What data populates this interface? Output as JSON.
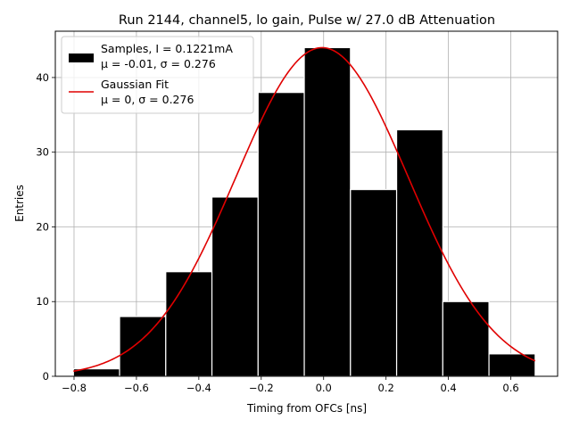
{
  "chart_data": {
    "type": "bar",
    "title": "Run 2144, channel5, lo gain, Pulse w/ 27.0 dB Attenuation",
    "xlabel": "Timing from OFCs [ns]",
    "ylabel": "Entries",
    "xlim": [
      -0.86,
      0.75
    ],
    "ylim": [
      0,
      46.2
    ],
    "grid": true,
    "legend_position": "upper-left",
    "x_ticks": [
      -0.8,
      -0.6,
      -0.4,
      -0.2,
      0.0,
      0.2,
      0.4,
      0.6
    ],
    "x_tick_labels": [
      "−0.8",
      "−0.6",
      "−0.4",
      "−0.2",
      "0.0",
      "0.2",
      "0.4",
      "0.6"
    ],
    "y_ticks": [
      0,
      10,
      20,
      30,
      40
    ],
    "y_tick_labels": [
      "0",
      "10",
      "20",
      "30",
      "40"
    ],
    "histogram": {
      "name": "Samples, I = 0.1221mA",
      "name_line2": "μ = -0.01, σ = 0.276",
      "color": "#000000",
      "bin_edges": [
        -0.802,
        -0.654,
        -0.506,
        -0.358,
        -0.21,
        -0.062,
        0.086,
        0.234,
        0.382,
        0.53,
        0.678
      ],
      "counts": [
        1,
        8,
        14,
        24,
        38,
        44,
        25,
        33,
        10,
        3
      ]
    },
    "fit": {
      "name": "Gaussian Fit",
      "name_line2": "μ = 0, σ = 0.276",
      "color": "#e00000",
      "type": "gaussian",
      "amplitude": 44,
      "mean": -0.005,
      "sigma": 0.276,
      "x_range": [
        -0.802,
        0.678
      ]
    }
  }
}
